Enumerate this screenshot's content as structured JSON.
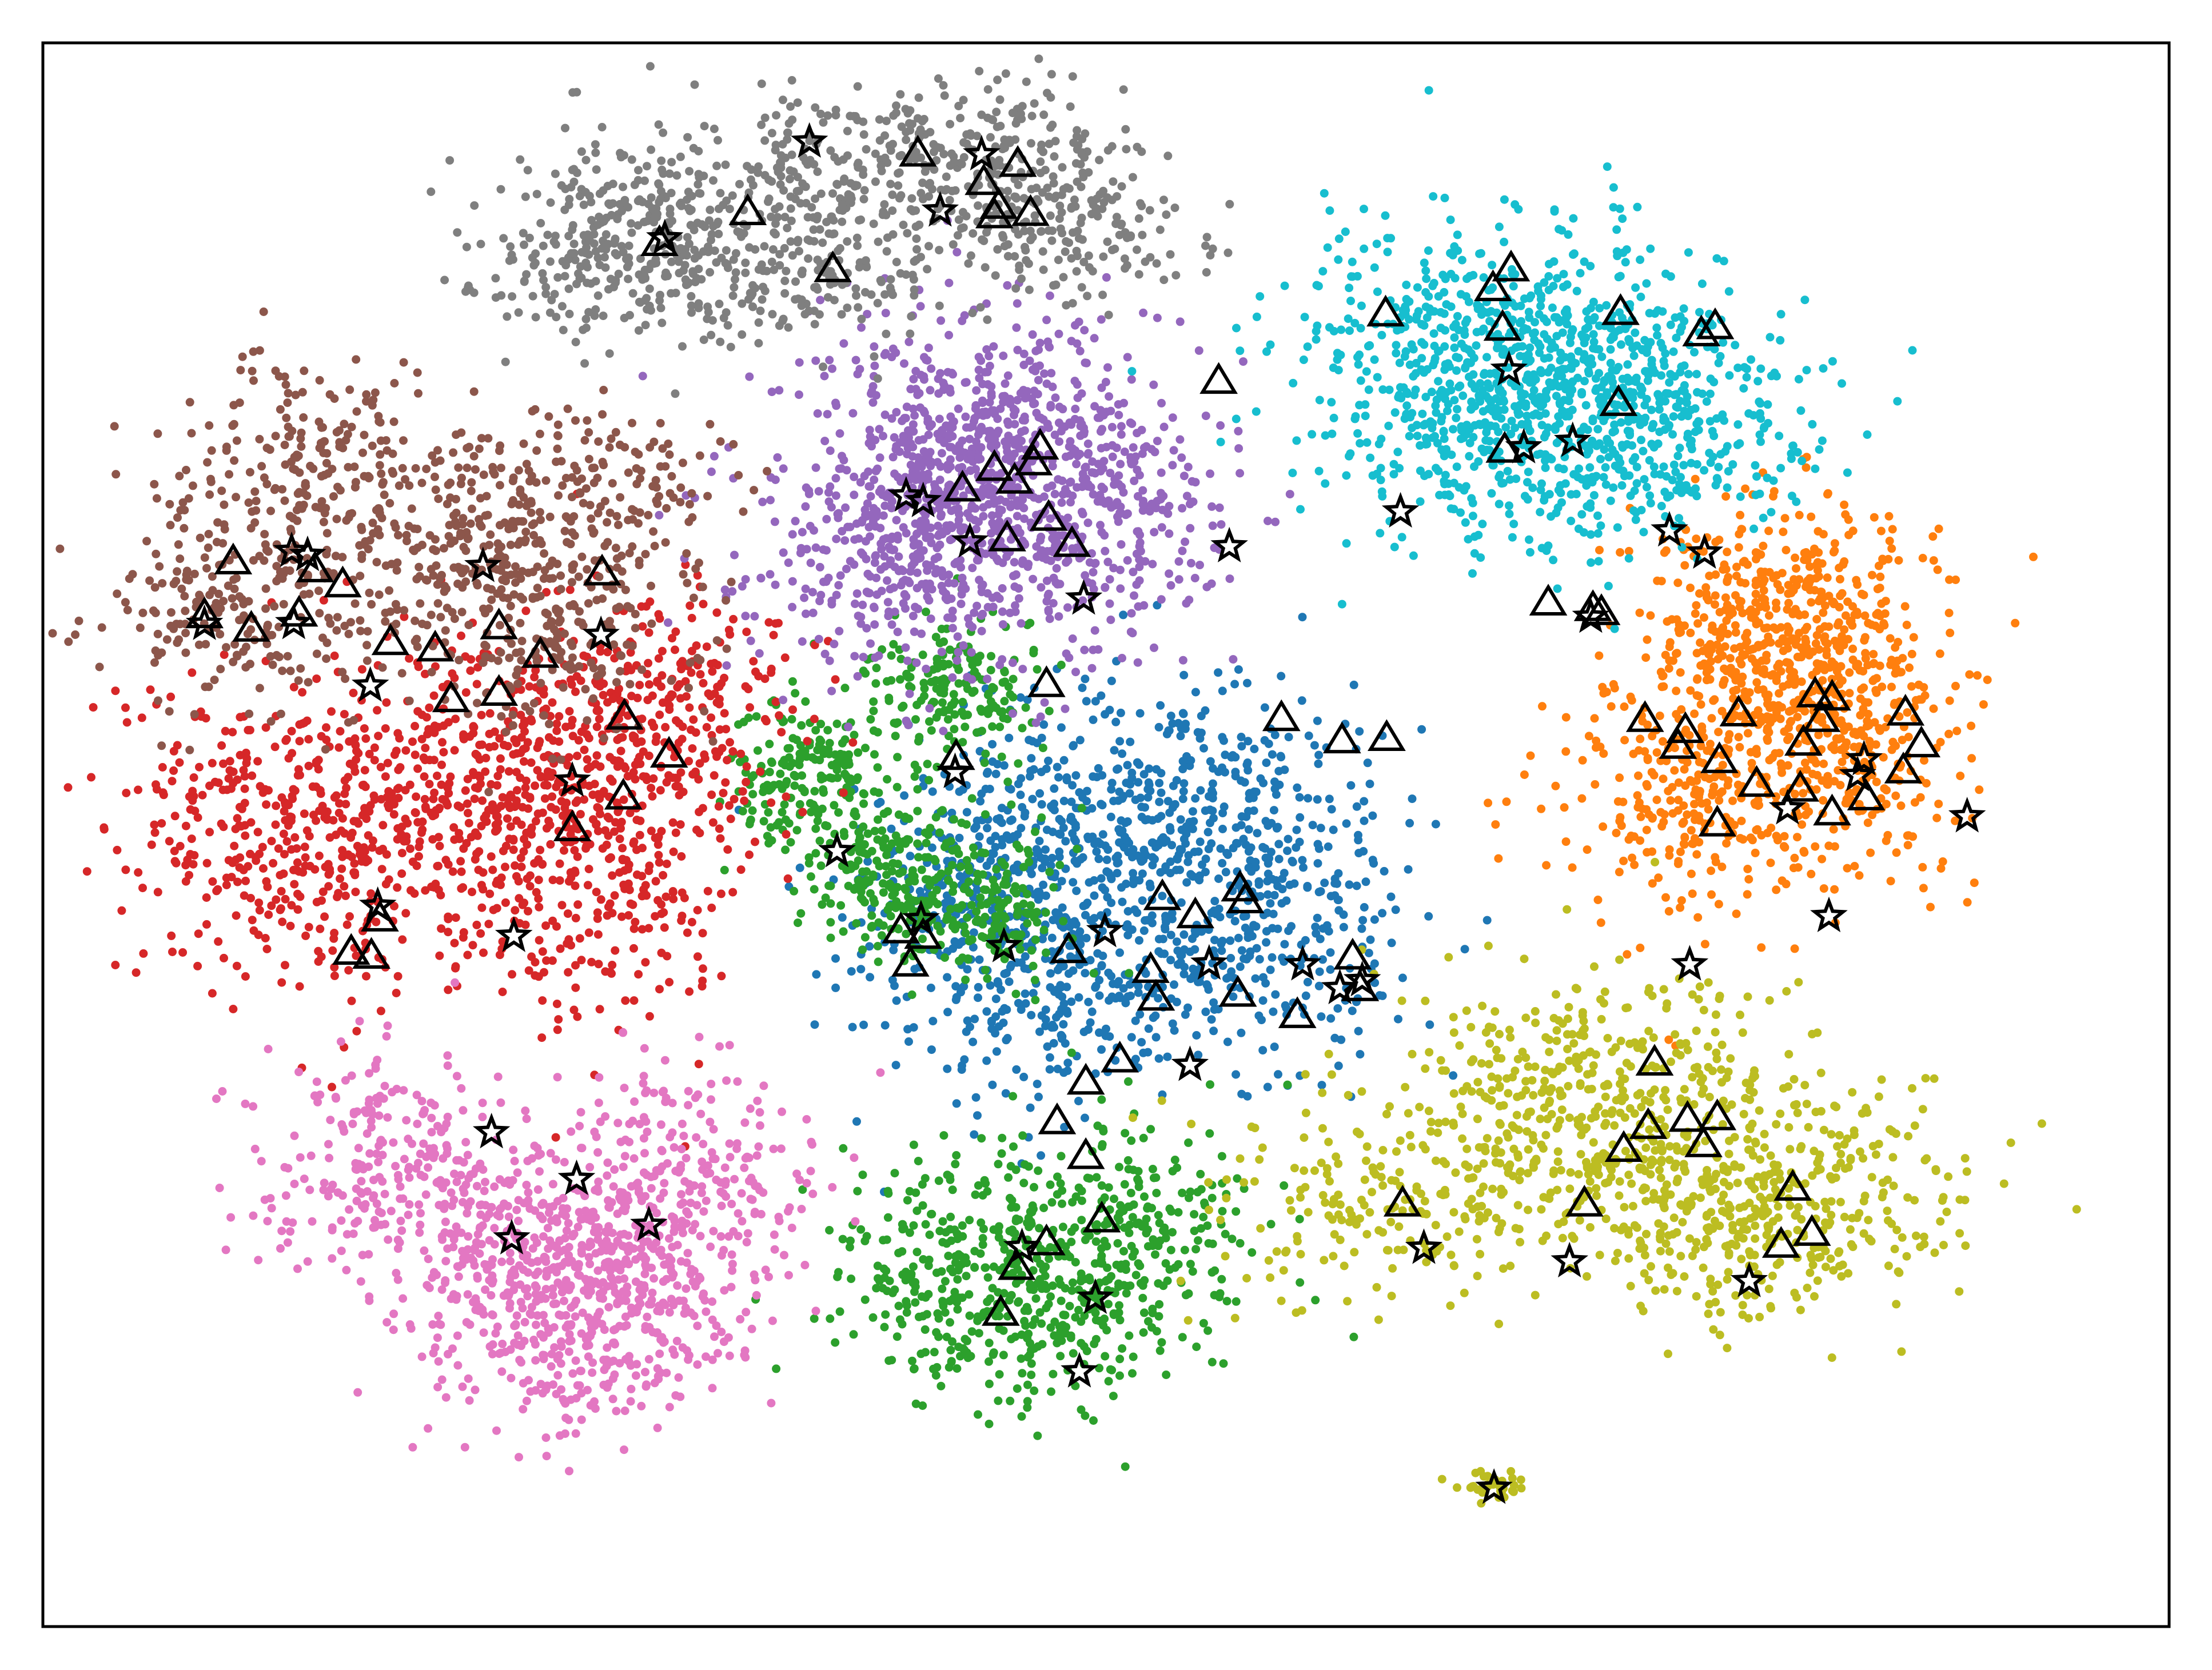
{
  "chart_data": {
    "type": "scatter",
    "title": "",
    "xlabel": "",
    "ylabel": "",
    "xlim": [
      -100,
      100
    ],
    "ylim": [
      -100,
      100
    ],
    "axis_ticks": false,
    "grid": false,
    "legend": "none",
    "clusters": [
      {
        "color": "#1f77b4",
        "points": 1300,
        "spread": [
          9.0,
          10.5
        ],
        "lobes": [
          [
            -0.5,
            2.6
          ],
          [
            11.8,
            1.2
          ],
          [
            -10.2,
            -7.3
          ],
          [
            12.1,
            -13.8
          ],
          [
            -5.8,
            -18.3
          ]
        ]
      },
      {
        "color": "#ff7f0e",
        "points": 1100,
        "spread": [
          7.4,
          9.4
        ],
        "lobes": [
          [
            61.6,
            23.7
          ],
          [
            68.8,
            10.3
          ],
          [
            55.3,
            6.1
          ],
          [
            66.3,
            27.0
          ]
        ]
      },
      {
        "color": "#2ca02c",
        "points": 750,
        "spread": [
          4.8,
          5.2
        ],
        "lobes": [
          [
            -14.6,
            18.3
          ],
          [
            -28.7,
            7.4
          ],
          [
            -20.9,
            -4.4
          ],
          [
            -11.6,
            -9.2
          ]
        ]
      },
      {
        "color": "#2ca02c",
        "points": 700,
        "spread": [
          7.2,
          8.8
        ],
        "lobes": [
          [
            -4.9,
            -58.8
          ],
          [
            -14.1,
            -55.4
          ],
          [
            2.4,
            -49.7
          ]
        ]
      },
      {
        "color": "#d62728",
        "points": 1400,
        "spread": [
          8.0,
          11.0
        ],
        "lobes": [
          [
            -66.3,
            1.4
          ],
          [
            -55.2,
            9.2
          ],
          [
            -49.1,
            -4.8
          ],
          [
            -80.2,
            0.5
          ],
          [
            -41.6,
            15.0
          ]
        ]
      },
      {
        "color": "#9467bd",
        "points": 1300,
        "spread": [
          9.0,
          10.0
        ],
        "lobes": [
          [
            -12.2,
            45.0
          ],
          [
            -14.1,
            51.0
          ],
          [
            -20.1,
            35.0
          ],
          [
            -2.3,
            39.9
          ]
        ]
      },
      {
        "color": "#8c564b",
        "points": 1000,
        "spread": [
          7.5,
          7.5
        ],
        "lobes": [
          [
            -75.9,
            46.3
          ],
          [
            -61.1,
            36.6
          ],
          [
            -49.7,
            42.1
          ],
          [
            -82.0,
            29.0
          ],
          [
            -53.0,
            25.0
          ]
        ]
      },
      {
        "color": "#e377c2",
        "points": 1200,
        "spread": [
          7.8,
          8.3
        ],
        "lobes": [
          [
            -54.8,
            -51.2
          ],
          [
            -44.8,
            -56.1
          ],
          [
            -51.9,
            -62.9
          ],
          [
            -40.1,
            -43.5
          ],
          [
            -67.0,
            -42.8
          ]
        ]
      },
      {
        "color": "#7f7f7f",
        "points": 1100,
        "spread": [
          7.6,
          5.9
        ],
        "lobes": [
          [
            -26.7,
            84.1
          ],
          [
            -11.3,
            85.5
          ],
          [
            -3.9,
            77.5
          ],
          [
            -28.7,
            71.4
          ],
          [
            -46.9,
            71.8
          ],
          [
            -43.1,
            77.9
          ]
        ]
      },
      {
        "color": "#bcbd22",
        "points": 1100,
        "spread": [
          11.2,
          7.7
        ],
        "lobes": [
          [
            45.7,
            -36.9
          ],
          [
            61.7,
            -49.6
          ],
          [
            26.9,
            -46.5
          ],
          [
            47.6,
            -27.9
          ],
          [
            62.0,
            -43.6
          ]
        ]
      },
      {
        "color": "#bcbd22",
        "points": 35,
        "spread": [
          2.0,
          1.2
        ],
        "lobes": [
          [
            36.2,
            -82.4
          ]
        ]
      },
      {
        "color": "#17becf",
        "points": 1200,
        "spread": [
          9.1,
          9.1
        ],
        "lobes": [
          [
            32.6,
            62.8
          ],
          [
            45.5,
            59.2
          ],
          [
            36.6,
            50.3
          ],
          [
            52.1,
            52.5
          ]
        ]
      }
    ],
    "triangles": [
      [
        -42.0,
        74.7
      ],
      [
        -33.7,
        78.6
      ],
      [
        -11.5,
        82.4
      ],
      [
        -10.1,
        79.4
      ],
      [
        -10.5,
        78.2
      ],
      [
        -17.7,
        86.0
      ],
      [
        -8.3,
        84.7
      ],
      [
        -7.1,
        78.5
      ],
      [
        -25.7,
        71.4
      ],
      [
        -82.1,
        34.5
      ],
      [
        -74.4,
        33.5
      ],
      [
        -71.8,
        31.6
      ],
      [
        -75.9,
        27.9
      ],
      [
        -80.4,
        26.0
      ],
      [
        -84.8,
        27.7
      ],
      [
        -47.4,
        33.1
      ],
      [
        -57.1,
        26.3
      ],
      [
        -63.1,
        23.5
      ],
      [
        -67.3,
        24.3
      ],
      [
        -61.6,
        17.1
      ],
      [
        -53.2,
        22.7
      ],
      [
        -57.1,
        17.9
      ],
      [
        -45.3,
        14.9
      ],
      [
        -41.1,
        10.1
      ],
      [
        -45.4,
        4.8
      ],
      [
        -50.2,
        0.8
      ],
      [
        -68.3,
        -10.6
      ],
      [
        -69.1,
        -15.3
      ],
      [
        -71.0,
        -14.8
      ],
      [
        -10.5,
        46.3
      ],
      [
        -6.8,
        47.0
      ],
      [
        -6.2,
        49.0
      ],
      [
        -13.5,
        43.7
      ],
      [
        -8.6,
        44.7
      ],
      [
        -9.3,
        37.4
      ],
      [
        -5.4,
        40.0
      ],
      [
        -3.2,
        36.7
      ],
      [
        -5.6,
        19.0
      ],
      [
        -14.1,
        9.8
      ],
      [
        -17.2,
        -12.8
      ],
      [
        -19.3,
        -12.1
      ],
      [
        -18.4,
        -16.3
      ],
      [
        -1.9,
        -31.2
      ],
      [
        1.3,
        -28.4
      ],
      [
        -1.9,
        -40.6
      ],
      [
        -4.6,
        -36.2
      ],
      [
        -0.4,
        -48.6
      ],
      [
        -5.6,
        -51.5
      ],
      [
        -8.4,
        -54.6
      ],
      [
        -9.9,
        -60.4
      ],
      [
        4.2,
        -17.1
      ],
      [
        -3.5,
        -14.6
      ],
      [
        4.7,
        -20.6
      ],
      [
        12.4,
        -20.1
      ],
      [
        18.0,
        -22.8
      ],
      [
        23.9,
        -19.4
      ],
      [
        23.2,
        -15.4
      ],
      [
        5.3,
        -7.9
      ],
      [
        8.4,
        -10.2
      ],
      [
        13.1,
        -8.3
      ],
      [
        12.6,
        -6.8
      ],
      [
        16.5,
        14.7
      ],
      [
        22.2,
        11.9
      ],
      [
        26.4,
        12.2
      ],
      [
        10.6,
        57.3
      ],
      [
        26.3,
        65.8
      ],
      [
        37.3,
        64.0
      ],
      [
        36.4,
        69.0
      ],
      [
        38.1,
        71.5
      ],
      [
        48.4,
        66.0
      ],
      [
        57.3,
        64.2
      ],
      [
        56.0,
        63.3
      ],
      [
        48.2,
        54.5
      ],
      [
        37.5,
        48.6
      ],
      [
        41.6,
        29.3
      ],
      [
        46.6,
        28.1
      ],
      [
        45.8,
        28.6
      ],
      [
        54.5,
        13.2
      ],
      [
        50.7,
        14.6
      ],
      [
        53.8,
        11.2
      ],
      [
        57.7,
        9.4
      ],
      [
        65.6,
        11.6
      ],
      [
        59.5,
        15.3
      ],
      [
        66.7,
        17.7
      ],
      [
        67.3,
        14.6
      ],
      [
        68.3,
        17.3
      ],
      [
        65.3,
        5.8
      ],
      [
        61.2,
        6.4
      ],
      [
        68.3,
        2.8
      ],
      [
        57.5,
        1.4
      ],
      [
        71.5,
        4.7
      ],
      [
        75.0,
        8.1
      ],
      [
        76.7,
        11.4
      ],
      [
        75.2,
        15.4
      ],
      [
        48.7,
        -39.7
      ],
      [
        54.7,
        -35.9
      ],
      [
        51.0,
        -36.8
      ],
      [
        51.6,
        -28.8
      ],
      [
        57.5,
        -35.7
      ],
      [
        56.2,
        -39.1
      ],
      [
        45.0,
        -46.6
      ],
      [
        64.6,
        -44.6
      ],
      [
        63.5,
        -51.8
      ],
      [
        66.4,
        -50.3
      ],
      [
        27.9,
        -46.6
      ]
    ],
    "stars": [
      [
        -27.9,
        87.5
      ],
      [
        -11.7,
        85.9
      ],
      [
        -15.6,
        78.8
      ],
      [
        -41.5,
        75.3
      ],
      [
        -76.6,
        35.8
      ],
      [
        -75.1,
        35.3
      ],
      [
        -58.6,
        33.9
      ],
      [
        -84.8,
        26.6
      ],
      [
        -76.4,
        26.7
      ],
      [
        -47.5,
        25.2
      ],
      [
        -69.2,
        18.8
      ],
      [
        -50.2,
        6.8
      ],
      [
        -55.7,
        -12.8
      ],
      [
        -68.5,
        -9.0
      ],
      [
        -18.8,
        42.8
      ],
      [
        -12.8,
        37.0
      ],
      [
        -2.1,
        29.8
      ],
      [
        -17.2,
        42.1
      ],
      [
        -14.2,
        7.9
      ],
      [
        -25.3,
        -2.1
      ],
      [
        -17.4,
        -10.7
      ],
      [
        -9.6,
        -14.1
      ],
      [
        -0.1,
        -12.2
      ],
      [
        9.7,
        -16.3
      ],
      [
        18.5,
        -16.4
      ],
      [
        22.0,
        -19.4
      ],
      [
        24.1,
        -18.4
      ],
      [
        7.9,
        -29.1
      ],
      [
        -1.0,
        -58.5
      ],
      [
        -7.9,
        -52.1
      ],
      [
        -2.5,
        -67.8
      ],
      [
        -55.9,
        -51.0
      ],
      [
        -49.8,
        -43.5
      ],
      [
        -43.0,
        -49.3
      ],
      [
        -57.8,
        -37.6
      ],
      [
        11.6,
        36.4
      ],
      [
        27.7,
        40.8
      ],
      [
        37.9,
        58.7
      ],
      [
        43.9,
        49.7
      ],
      [
        39.3,
        48.9
      ],
      [
        53.0,
        38.4
      ],
      [
        56.3,
        35.6
      ],
      [
        45.6,
        27.5
      ],
      [
        64.1,
        3.3
      ],
      [
        71.3,
        9.5
      ],
      [
        70.7,
        7.5
      ],
      [
        81.0,
        2.3
      ],
      [
        68.0,
        -10.3
      ],
      [
        54.9,
        -16.4
      ],
      [
        29.9,
        -52.2
      ],
      [
        43.6,
        -53.9
      ],
      [
        60.5,
        -56.4
      ],
      [
        36.5,
        -82.5
      ]
    ]
  }
}
